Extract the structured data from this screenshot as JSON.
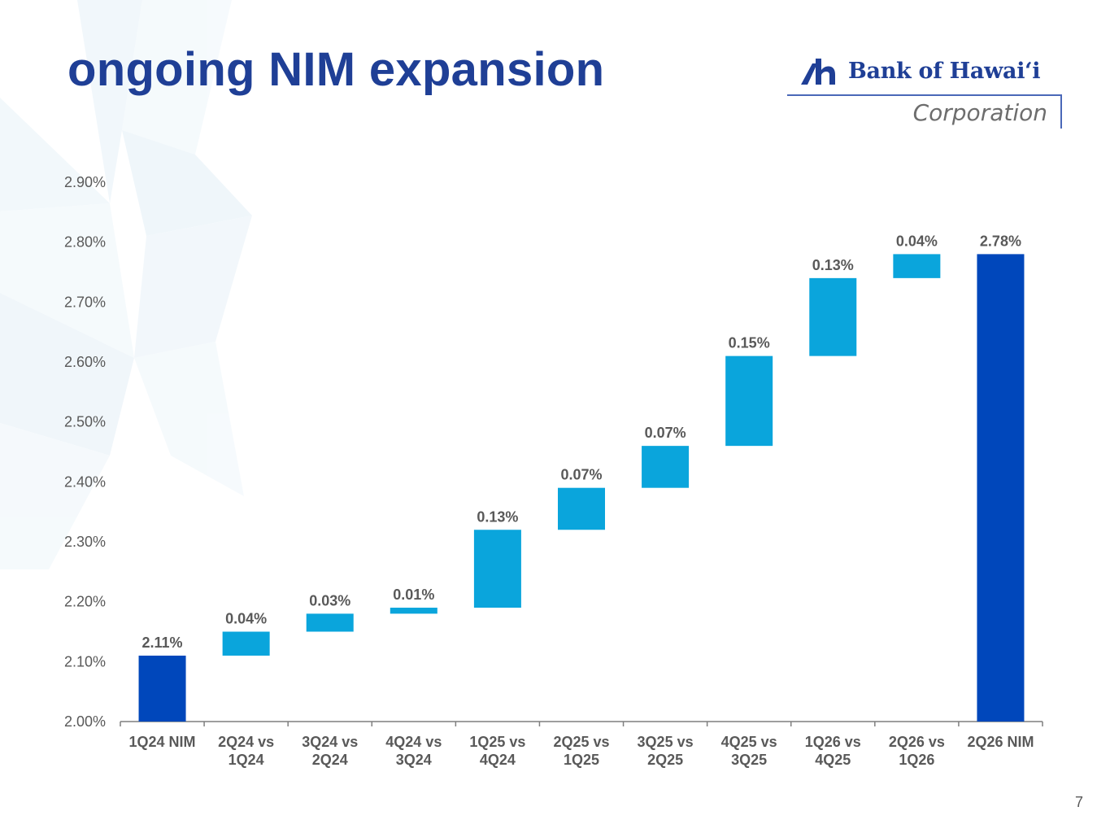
{
  "title": "ongoing NIM expansion",
  "logo": {
    "name": "Bank of Hawaiʻi",
    "subtitle": "Corporation"
  },
  "page_number": "7",
  "colors": {
    "total": "#0047BB",
    "change": "#0AA5DC",
    "title": "#1F3F96",
    "text": "#595959"
  },
  "chart_data": {
    "type": "bar",
    "subtype": "waterfall",
    "categories": [
      [
        "1Q24 NIM"
      ],
      [
        "2Q24 vs",
        "1Q24"
      ],
      [
        "3Q24 vs",
        "2Q24"
      ],
      [
        "4Q24 vs",
        "3Q24"
      ],
      [
        "1Q25 vs",
        "4Q24"
      ],
      [
        "2Q25 vs",
        "1Q25"
      ],
      [
        "3Q25 vs",
        "2Q25"
      ],
      [
        "4Q25 vs",
        "3Q25"
      ],
      [
        "1Q26 vs",
        "4Q25"
      ],
      [
        "2Q26 vs",
        "1Q26"
      ],
      [
        "2Q26 NIM"
      ]
    ],
    "values": [
      2.11,
      0.04,
      0.03,
      0.01,
      0.13,
      0.07,
      0.07,
      0.15,
      0.13,
      0.04,
      2.78
    ],
    "bar_ranges": [
      [
        2.0,
        2.11
      ],
      [
        2.11,
        2.15
      ],
      [
        2.15,
        2.18
      ],
      [
        2.18,
        2.19
      ],
      [
        2.19,
        2.32
      ],
      [
        2.32,
        2.39
      ],
      [
        2.39,
        2.46
      ],
      [
        2.46,
        2.61
      ],
      [
        2.61,
        2.74
      ],
      [
        2.74,
        2.78
      ],
      [
        2.0,
        2.78
      ]
    ],
    "bar_kinds": [
      "total",
      "change",
      "change",
      "change",
      "change",
      "change",
      "change",
      "change",
      "change",
      "change",
      "total"
    ],
    "data_labels": [
      "2.11%",
      "0.04%",
      "0.03%",
      "0.01%",
      "0.13%",
      "0.07%",
      "0.07%",
      "0.15%",
      "0.13%",
      "0.04%",
      "2.78%"
    ],
    "yticks": [
      "2.00%",
      "2.10%",
      "2.20%",
      "2.30%",
      "2.40%",
      "2.50%",
      "2.60%",
      "2.70%",
      "2.80%",
      "2.90%"
    ],
    "ylim": [
      2.0,
      2.9
    ],
    "grid": false,
    "legend": "none"
  }
}
